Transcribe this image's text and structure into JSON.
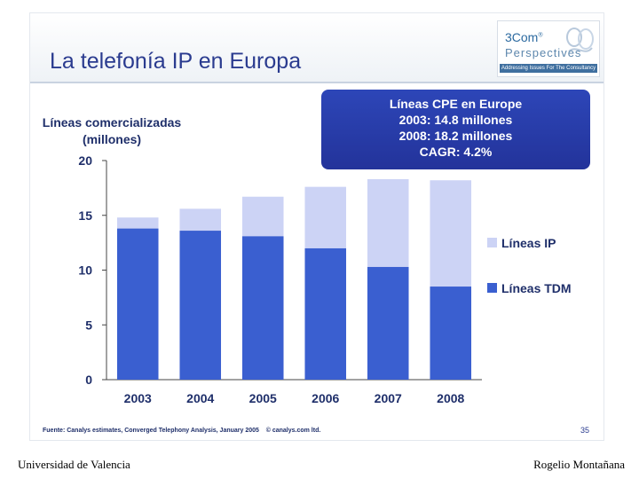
{
  "slide": {
    "title": "La telefonía IP en Europa",
    "logo": {
      "name": "3Com",
      "reg": "®",
      "sub": "Perspectives",
      "tagline": "Addressing Issues For The Consultancy"
    },
    "callout": {
      "lines": [
        "Líneas CPE en  Europe",
        "2003: 14.8 millones",
        "2008: 18.2 millones",
        "CAGR: 4.2%"
      ]
    },
    "source": {
      "text": "Fuente: Canalys estimates, Converged Telephony Analysis, January 2005",
      "copyright": "© canalys.com ltd."
    },
    "page_number": "35"
  },
  "footer": {
    "left": "Universidad de Valencia",
    "right": "Rogelio Montañana"
  },
  "colors": {
    "tdm": "#3a5fd0",
    "ip": "#ccd3f5",
    "title": "#2a3b8f",
    "callout": "#2a3fb0"
  },
  "chart_data": {
    "type": "bar",
    "stacked": true,
    "categories": [
      "2003",
      "2004",
      "2005",
      "2006",
      "2007",
      "2008"
    ],
    "series": [
      {
        "name": "Líneas TDM",
        "values": [
          13.8,
          13.6,
          13.1,
          12.0,
          10.3,
          8.5
        ]
      },
      {
        "name": "Líneas IP",
        "values": [
          1.0,
          2.0,
          3.6,
          5.6,
          8.0,
          9.7
        ]
      }
    ],
    "ylabel": "Líneas comercializadas\n(millones)",
    "ylim": [
      0,
      20
    ],
    "yticks": [
      0,
      5,
      10,
      15,
      20
    ],
    "legend_position": "right",
    "legend_order": [
      "Líneas IP",
      "Líneas TDM"
    ],
    "grid": false
  }
}
